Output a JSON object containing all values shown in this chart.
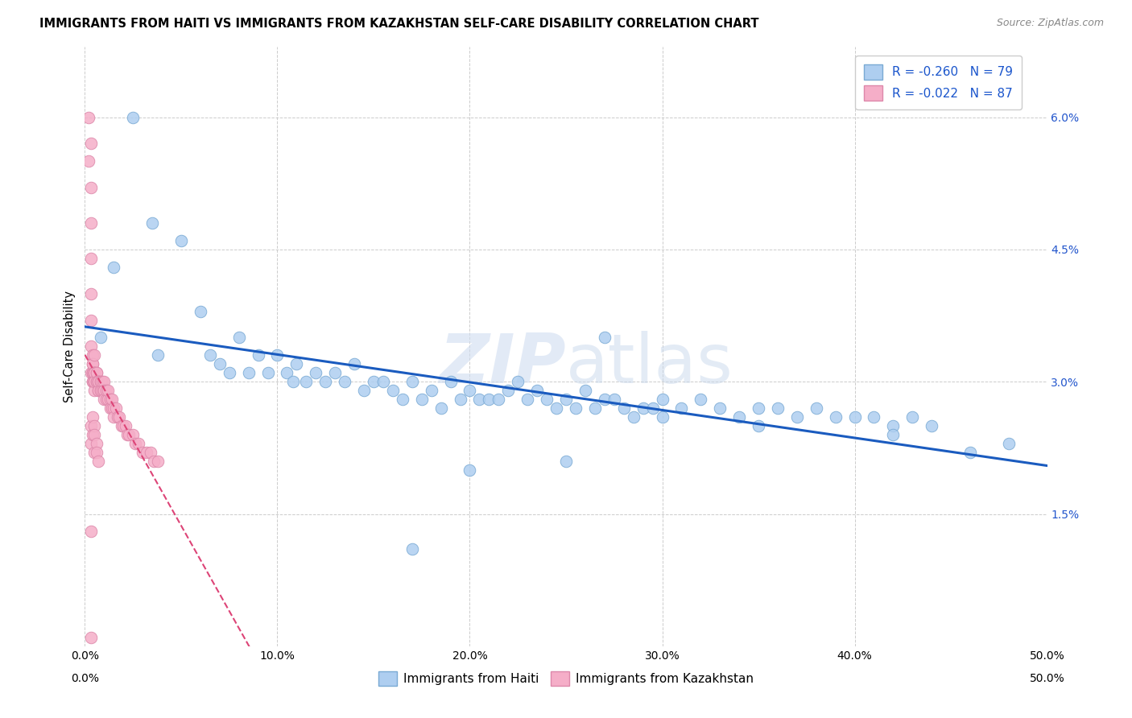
{
  "title": "IMMIGRANTS FROM HAITI VS IMMIGRANTS FROM KAZAKHSTAN SELF-CARE DISABILITY CORRELATION CHART",
  "source": "Source: ZipAtlas.com",
  "ylabel": "Self-Care Disability",
  "right_yticks": [
    "6.0%",
    "4.5%",
    "3.0%",
    "1.5%"
  ],
  "right_ytick_values": [
    0.06,
    0.045,
    0.03,
    0.015
  ],
  "xmin": 0.0,
  "xmax": 0.5,
  "ymin": 0.0,
  "ymax": 0.068,
  "haiti_color": "#aecef0",
  "haiti_edge_color": "#7aaad4",
  "kazakhstan_color": "#f5aec8",
  "kazakhstan_edge_color": "#dd88aa",
  "haiti_R": -0.26,
  "haiti_N": 79,
  "kazakhstan_R": -0.022,
  "kazakhstan_N": 87,
  "trend_haiti_color": "#1a5bbf",
  "trend_kazakhstan_color": "#dd4477",
  "haiti_scatter_x": [
    0.008,
    0.015,
    0.025,
    0.035,
    0.038,
    0.05,
    0.06,
    0.065,
    0.07,
    0.075,
    0.08,
    0.085,
    0.09,
    0.095,
    0.1,
    0.105,
    0.108,
    0.11,
    0.115,
    0.12,
    0.125,
    0.13,
    0.135,
    0.14,
    0.145,
    0.15,
    0.155,
    0.16,
    0.165,
    0.17,
    0.175,
    0.18,
    0.185,
    0.19,
    0.195,
    0.2,
    0.205,
    0.21,
    0.215,
    0.22,
    0.225,
    0.23,
    0.235,
    0.24,
    0.245,
    0.25,
    0.255,
    0.26,
    0.265,
    0.27,
    0.275,
    0.28,
    0.285,
    0.29,
    0.295,
    0.3,
    0.31,
    0.32,
    0.33,
    0.34,
    0.35,
    0.36,
    0.37,
    0.38,
    0.39,
    0.4,
    0.41,
    0.42,
    0.43,
    0.44,
    0.27,
    0.35,
    0.42,
    0.46,
    0.48,
    0.3,
    0.25,
    0.2,
    0.17
  ],
  "haiti_scatter_y": [
    0.035,
    0.043,
    0.06,
    0.048,
    0.033,
    0.046,
    0.038,
    0.033,
    0.032,
    0.031,
    0.035,
    0.031,
    0.033,
    0.031,
    0.033,
    0.031,
    0.03,
    0.032,
    0.03,
    0.031,
    0.03,
    0.031,
    0.03,
    0.032,
    0.029,
    0.03,
    0.03,
    0.029,
    0.028,
    0.03,
    0.028,
    0.029,
    0.027,
    0.03,
    0.028,
    0.029,
    0.028,
    0.028,
    0.028,
    0.029,
    0.03,
    0.028,
    0.029,
    0.028,
    0.027,
    0.028,
    0.027,
    0.029,
    0.027,
    0.028,
    0.028,
    0.027,
    0.026,
    0.027,
    0.027,
    0.028,
    0.027,
    0.028,
    0.027,
    0.026,
    0.027,
    0.027,
    0.026,
    0.027,
    0.026,
    0.026,
    0.026,
    0.025,
    0.026,
    0.025,
    0.035,
    0.025,
    0.024,
    0.022,
    0.023,
    0.026,
    0.021,
    0.02,
    0.011
  ],
  "kazakhstan_scatter_x": [
    0.002,
    0.002,
    0.003,
    0.003,
    0.003,
    0.003,
    0.003,
    0.003,
    0.003,
    0.003,
    0.004,
    0.004,
    0.004,
    0.004,
    0.004,
    0.004,
    0.004,
    0.004,
    0.005,
    0.005,
    0.005,
    0.005,
    0.005,
    0.005,
    0.005,
    0.005,
    0.005,
    0.005,
    0.005,
    0.005,
    0.006,
    0.006,
    0.006,
    0.006,
    0.007,
    0.007,
    0.007,
    0.007,
    0.007,
    0.008,
    0.008,
    0.008,
    0.008,
    0.009,
    0.009,
    0.01,
    0.01,
    0.01,
    0.01,
    0.011,
    0.011,
    0.012,
    0.012,
    0.013,
    0.013,
    0.014,
    0.014,
    0.015,
    0.015,
    0.016,
    0.017,
    0.018,
    0.019,
    0.02,
    0.021,
    0.022,
    0.023,
    0.025,
    0.026,
    0.028,
    0.03,
    0.032,
    0.034,
    0.036,
    0.038,
    0.003,
    0.003,
    0.004,
    0.004,
    0.005,
    0.005,
    0.005,
    0.006,
    0.006,
    0.007,
    0.003,
    0.003
  ],
  "kazakhstan_scatter_y": [
    0.06,
    0.055,
    0.057,
    0.052,
    0.048,
    0.044,
    0.04,
    0.037,
    0.034,
    0.031,
    0.033,
    0.031,
    0.03,
    0.032,
    0.031,
    0.03,
    0.031,
    0.032,
    0.033,
    0.031,
    0.03,
    0.031,
    0.03,
    0.031,
    0.03,
    0.03,
    0.03,
    0.031,
    0.029,
    0.03,
    0.031,
    0.03,
    0.031,
    0.03,
    0.029,
    0.03,
    0.03,
    0.029,
    0.03,
    0.03,
    0.029,
    0.03,
    0.029,
    0.029,
    0.03,
    0.029,
    0.03,
    0.029,
    0.028,
    0.028,
    0.029,
    0.028,
    0.029,
    0.028,
    0.027,
    0.027,
    0.028,
    0.027,
    0.026,
    0.027,
    0.026,
    0.026,
    0.025,
    0.025,
    0.025,
    0.024,
    0.024,
    0.024,
    0.023,
    0.023,
    0.022,
    0.022,
    0.022,
    0.021,
    0.021,
    0.025,
    0.023,
    0.026,
    0.024,
    0.022,
    0.025,
    0.024,
    0.023,
    0.022,
    0.021,
    0.013,
    0.001
  ]
}
